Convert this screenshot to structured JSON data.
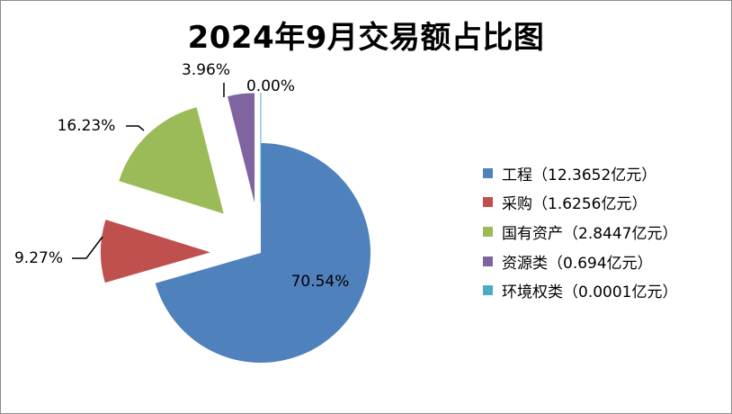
{
  "chart_data": {
    "type": "pie",
    "title": "2024年9月交易额占比图",
    "series": [
      {
        "name": "工程",
        "value": 12.3652,
        "percent_label": "70.54%",
        "legend_label": "工程（12.3652亿元）",
        "color": "#4F81BD"
      },
      {
        "name": "采购",
        "value": 1.6256,
        "percent_label": "9.27%",
        "legend_label": "采购（1.6256亿元）",
        "color": "#C0504D"
      },
      {
        "name": "国有资产",
        "value": 2.8447,
        "percent_label": "16.23%",
        "legend_label": "国有资产（2.8447亿元）",
        "color": "#9BBB59"
      },
      {
        "name": "资源类",
        "value": 0.694,
        "percent_label": "3.96%",
        "legend_label": "资源类（0.694亿元）",
        "color": "#8064A2"
      },
      {
        "name": "环境权类",
        "value": 0.0001,
        "percent_label": "0.00%",
        "legend_label": "环境权类（0.0001亿元）",
        "color": "#4BACC6"
      }
    ],
    "legend_position": "right",
    "exploded": true
  }
}
